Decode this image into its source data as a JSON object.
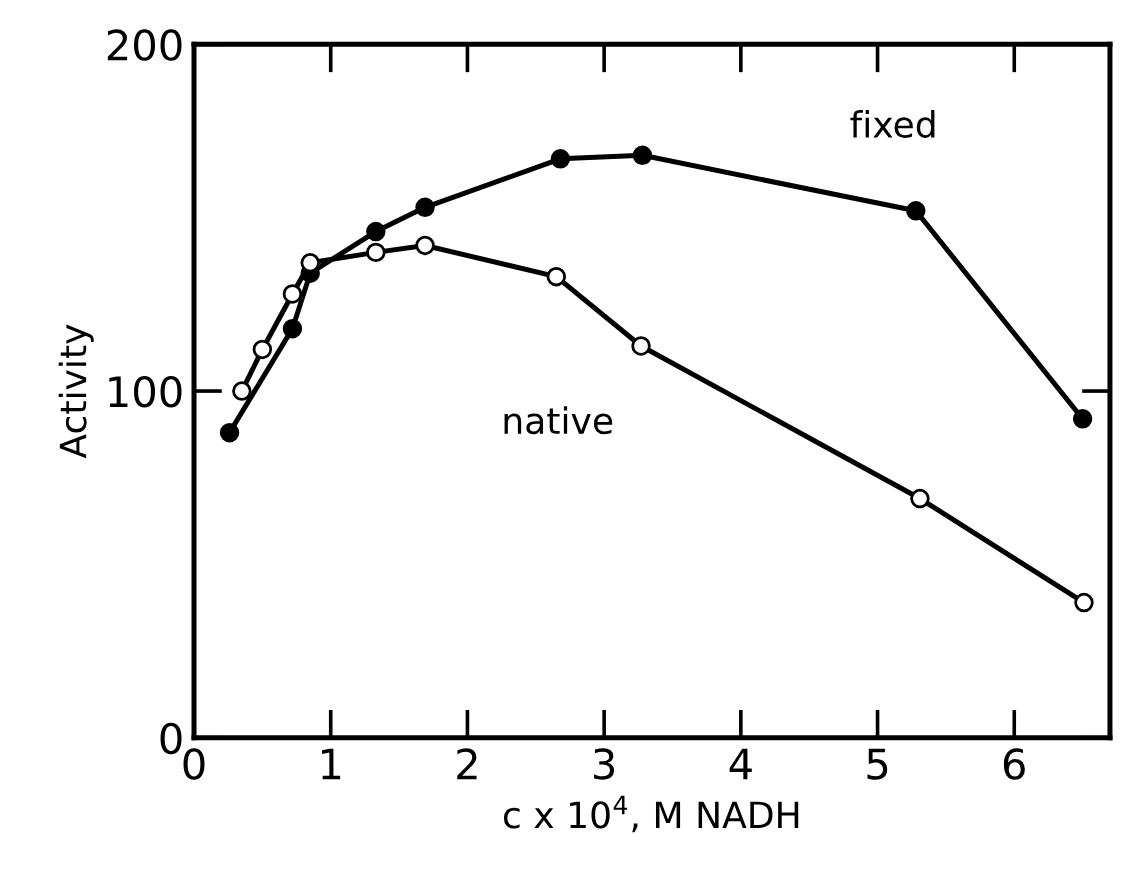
{
  "chart_data": {
    "type": "line",
    "xlabel": "c x 10$^{4}$, M NADH",
    "ylabel": "Activity",
    "xlim": [
      0,
      6.7
    ],
    "ylim": [
      0,
      200
    ],
    "xticks": [
      0,
      1,
      2,
      3,
      4,
      5,
      6
    ],
    "yticks": [
      0,
      100,
      200
    ],
    "grid": false,
    "marker": "circle",
    "line_style": "solid",
    "series": [
      {
        "name": "fixed",
        "color": "#000000",
        "x": [
          0.26,
          0.72,
          0.85,
          1.33,
          1.69,
          2.68,
          3.28,
          5.28,
          6.5
        ],
        "values": [
          88,
          118,
          134,
          146,
          153,
          167,
          168,
          152,
          92
        ]
      },
      {
        "name": "native",
        "color": "#000000",
        "x": [
          0.35,
          0.5,
          0.72,
          0.85,
          1.33,
          1.69,
          2.65,
          3.27,
          5.31,
          6.51
        ],
        "values": [
          100,
          112,
          128,
          137,
          140,
          142,
          133,
          113,
          69,
          39
        ]
      }
    ]
  }
}
